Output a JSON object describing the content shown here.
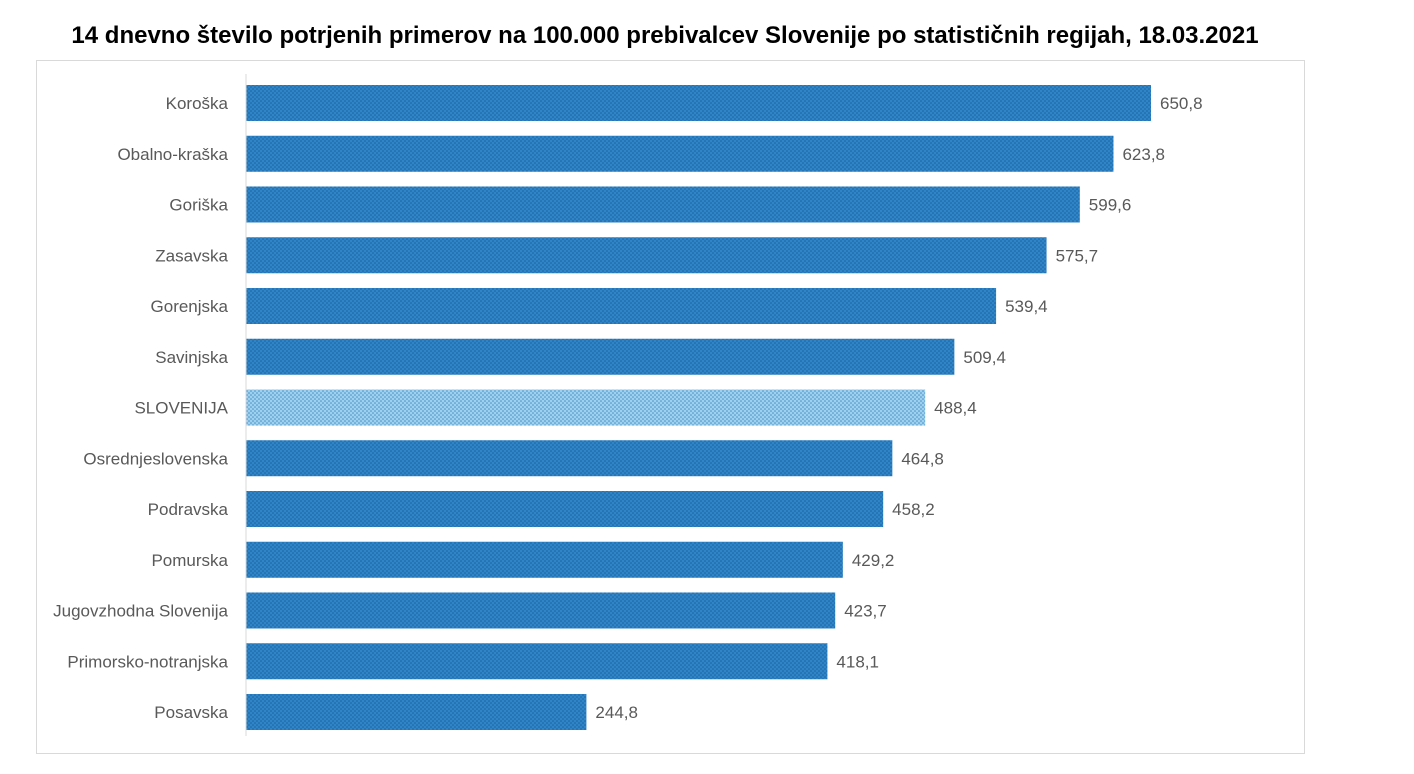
{
  "title": "14 dnevno število potrjenih primerov na 100.000 prebivalcev Slovenije po statističnih regijah, 18.03.2021",
  "chart_data": {
    "type": "bar",
    "orientation": "horizontal",
    "title": "14 dnevno število potrjenih primerov na 100.000 prebivalcev Slovenije po statističnih regijah, 18.03.2021",
    "xlabel": "",
    "ylabel": "",
    "xlim": [
      0,
      700
    ],
    "grid": false,
    "legend": "none",
    "categories": [
      "Koroška",
      "Obalno-kraška",
      "Goriška",
      "Zasavska",
      "Gorenjska",
      "Savinjska",
      "SLOVENIJA",
      "Osrednjeslovenska",
      "Podravska",
      "Pomurska",
      "Jugovzhodna Slovenija",
      "Primorsko-notranjska",
      "Posavska"
    ],
    "values": [
      650.8,
      623.8,
      599.6,
      575.7,
      539.4,
      509.4,
      488.4,
      464.8,
      458.2,
      429.2,
      423.7,
      418.1,
      244.8
    ],
    "data_labels": [
      "650,8",
      "623,8",
      "599,6",
      "575,7",
      "539,4",
      "509,4",
      "488,4",
      "464,8",
      "458,2",
      "429,2",
      "423,7",
      "418,1",
      "244,8"
    ],
    "highlight_category": "SLOVENIJA",
    "colors": {
      "bar_fill": "#2e86c8",
      "bar_dots": "#1d5f99",
      "highlight_fill": "#9fd0ee",
      "highlight_dots": "#3f8fc9",
      "axis": "#d9d9d9",
      "label_text": "#595959"
    }
  }
}
